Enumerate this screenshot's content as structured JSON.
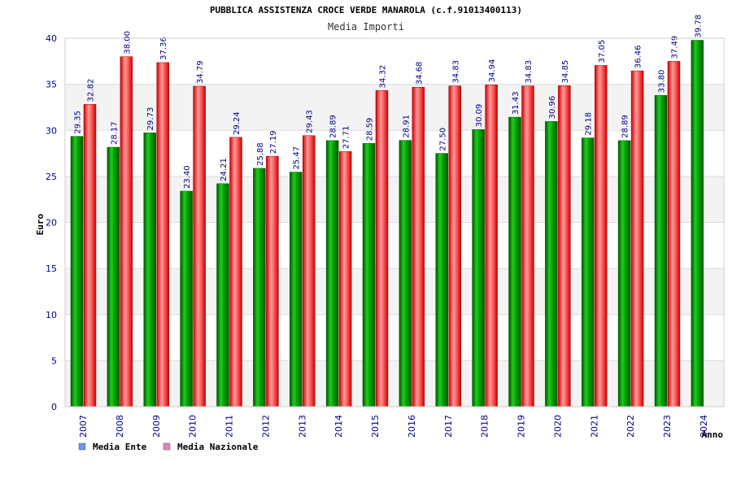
{
  "chart_data": {
    "type": "bar",
    "title": "PUBBLICA ASSISTENZA CROCE VERDE MANAROLA (c.f.91013400113)",
    "subtitle": "Media Importi",
    "ylabel": "Euro",
    "xlabel": "Anno",
    "ylim": [
      0,
      40
    ],
    "yticks": [
      0,
      5,
      10,
      15,
      20,
      25,
      30,
      35,
      40
    ],
    "grid": true,
    "legend_position": "bottom-left",
    "categories": [
      "2007",
      "2008",
      "2009",
      "2010",
      "2011",
      "2012",
      "2013",
      "2014",
      "2015",
      "2016",
      "2017",
      "2018",
      "2019",
      "2020",
      "2021",
      "2022",
      "2023",
      "2024"
    ],
    "series": [
      {
        "name": "Media Ente",
        "color": "#009900",
        "legend_color": "#6699ee",
        "values": [
          29.35,
          28.17,
          29.73,
          23.4,
          24.21,
          25.88,
          25.47,
          28.89,
          28.59,
          28.91,
          27.5,
          30.09,
          31.43,
          30.96,
          29.18,
          28.89,
          33.8,
          39.78
        ],
        "labels": [
          "29.35",
          "28.17",
          "29.73",
          "23.40",
          "24.21",
          "25.88",
          "25.47",
          "28.89",
          "28.59",
          "28.91",
          "27.50",
          "30.09",
          "31.43",
          "30.96",
          "29.18",
          "28.89",
          "33.80",
          "39.78"
        ]
      },
      {
        "name": "Media Nazionale",
        "color": "#ee1111",
        "legend_color": "#dd88bb",
        "values": [
          32.82,
          38.0,
          37.36,
          34.79,
          29.24,
          27.19,
          29.43,
          27.71,
          34.32,
          34.68,
          34.83,
          34.94,
          34.83,
          34.85,
          37.05,
          36.46,
          37.49,
          null
        ],
        "labels": [
          "32.82",
          "38.00",
          "37.36",
          "34.79",
          "29.24",
          "27.19",
          "29.43",
          "27.71",
          "34.32",
          "34.68",
          "34.83",
          "34.94",
          "34.83",
          "34.85",
          "37.05",
          "36.46",
          "37.49",
          null
        ]
      }
    ]
  }
}
